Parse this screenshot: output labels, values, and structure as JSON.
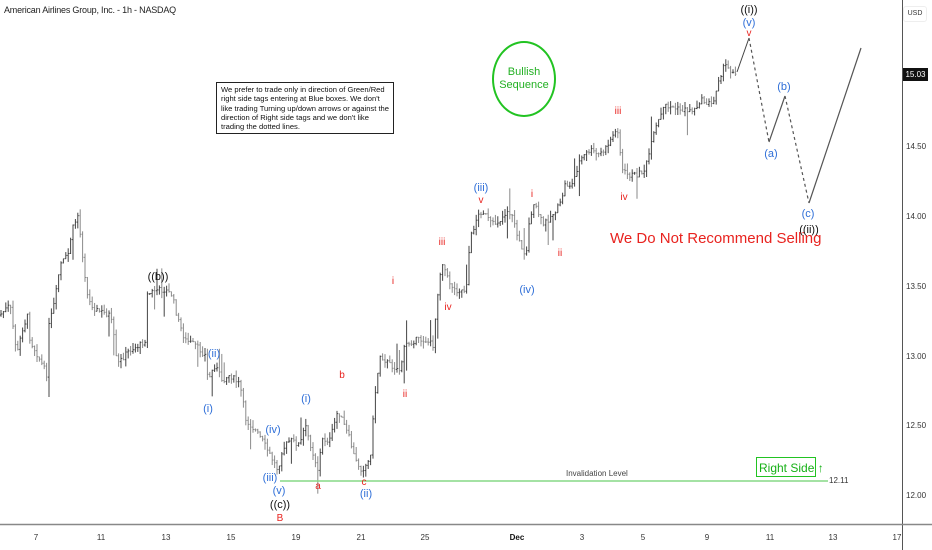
{
  "header": {
    "title": "American Airlines Group, Inc. - 1h - NASDAQ",
    "currency": "USD"
  },
  "note": "We prefer to trade only in direction of Green/Red right side tags entering at Blue boxes. We don't like trading Turning up/down arrows or against the direction of Right side tags and we don't like trading the dotted lines.",
  "badge": "Bullish Sequence",
  "warning": "We Do Not Recommend Selling",
  "right_side": {
    "label": "Right Side",
    "arrow": "↑"
  },
  "invalidation": {
    "label": "Invalidation Level",
    "price_label": "12.11"
  },
  "colors": {
    "bars": "#555555",
    "green": "#22c322",
    "red": "#e8231f",
    "blue": "#2f6fd8",
    "black": "#111111",
    "invalidation_line": "#86d886"
  },
  "chart_data": {
    "type": "ohlc",
    "title": "American Airlines Group, Inc. - 1h - NASDAQ",
    "current_price": 15.03,
    "invalidation_price": 12.11,
    "ylim": [
      11.8,
      15.7
    ],
    "yticks": [
      "15.03",
      "14.50",
      "14.00",
      "13.50",
      "13.00",
      "12.50",
      "12.00"
    ],
    "xticks": [
      "7",
      "11",
      "13",
      "15",
      "19",
      "21",
      "25",
      "Dec",
      "3",
      "5",
      "9",
      "11",
      "13",
      "17"
    ],
    "grid": false,
    "wave_labels": [
      {
        "text": "((b))",
        "color": "black",
        "price": 13.53
      },
      {
        "text": "(ii)",
        "color": "blue",
        "price": 13.0
      },
      {
        "text": "(i)",
        "color": "blue",
        "price": 12.65
      },
      {
        "text": "(i)",
        "color": "blue",
        "price": 12.66
      },
      {
        "text": "(iv)",
        "color": "blue",
        "price": 12.45
      },
      {
        "text": "(iii)",
        "color": "blue",
        "price": 12.2
      },
      {
        "text": "(v)",
        "color": "blue",
        "price": 12.1
      },
      {
        "text": "((c))",
        "color": "black",
        "price": 12.1
      },
      {
        "text": "B",
        "color": "red",
        "price": 12.1
      },
      {
        "text": "a",
        "color": "red",
        "price": 12.15
      },
      {
        "text": "b",
        "color": "red",
        "price": 12.82
      },
      {
        "text": "c",
        "color": "red",
        "price": 12.17
      },
      {
        "text": "(ii)",
        "color": "blue",
        "price": 12.17
      },
      {
        "text": "i",
        "color": "red",
        "price": 13.5
      },
      {
        "text": "ii",
        "color": "red",
        "price": 12.85
      },
      {
        "text": "iii",
        "color": "red",
        "price": 13.78
      },
      {
        "text": "iv",
        "color": "red",
        "price": 13.45
      },
      {
        "text": "(iii)",
        "color": "blue",
        "price": 14.1
      },
      {
        "text": "v",
        "color": "red",
        "price": 14.1
      },
      {
        "text": "(iv)",
        "color": "blue",
        "price": 13.6
      },
      {
        "text": "i",
        "color": "red",
        "price": 14.1
      },
      {
        "text": "ii",
        "color": "red",
        "price": 13.8
      },
      {
        "text": "iii",
        "color": "red",
        "price": 14.7
      },
      {
        "text": "iv",
        "color": "red",
        "price": 14.2
      },
      {
        "text": "((i))",
        "color": "black",
        "price": 15.35
      },
      {
        "text": "(v)",
        "color": "blue",
        "price": 15.35
      },
      {
        "text": "v",
        "color": "red",
        "price": 15.35
      },
      {
        "text": "(a)",
        "color": "blue",
        "price": 14.55
      },
      {
        "text": "(b)",
        "color": "blue",
        "price": 14.87
      },
      {
        "text": "(c)",
        "color": "blue",
        "price": 14.1
      },
      {
        "text": "((ii))",
        "color": "black",
        "price": 14.1
      }
    ],
    "projection": [
      {
        "wave": "(a)",
        "style": "dashed",
        "price": 14.55
      },
      {
        "wave": "(b)",
        "style": "solid",
        "price": 14.87
      },
      {
        "wave": "(c)",
        "style": "dashed",
        "price": 14.1
      },
      {
        "wave": "((iii))",
        "style": "solid",
        "price": 15.2
      }
    ]
  }
}
